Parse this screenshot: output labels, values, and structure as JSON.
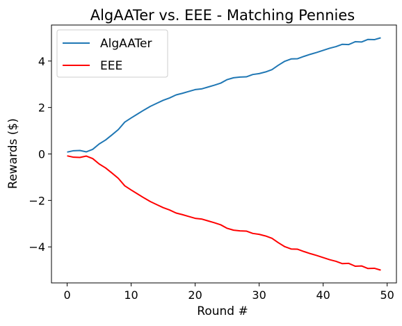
{
  "chart_data": {
    "type": "line",
    "title": "AlgAATer vs. EEE - Matching Pennies",
    "xlabel": "Round #",
    "ylabel": "Rewards ($)",
    "xlim": [
      -2.45,
      51.45
    ],
    "ylim": [
      -5.55,
      5.55
    ],
    "xticks": [
      0,
      10,
      20,
      30,
      40,
      50
    ],
    "yticks": [
      -4,
      -2,
      0,
      2,
      4
    ],
    "xtick_labels": [
      "0",
      "10",
      "20",
      "30",
      "40",
      "50"
    ],
    "ytick_labels": [
      "−4",
      "−2",
      "0",
      "2",
      "4"
    ],
    "grid": false,
    "legend_position": "top-left",
    "x": [
      0,
      1,
      2,
      3,
      4,
      5,
      6,
      7,
      8,
      9,
      10,
      11,
      12,
      13,
      14,
      15,
      16,
      17,
      18,
      19,
      20,
      21,
      22,
      23,
      24,
      25,
      26,
      27,
      28,
      29,
      30,
      31,
      32,
      33,
      34,
      35,
      36,
      37,
      38,
      39,
      40,
      41,
      42,
      43,
      44,
      45,
      46,
      47,
      48,
      49
    ],
    "series": [
      {
        "name": "AlgAATer",
        "color": "#1f77b4",
        "values": [
          0.08,
          0.14,
          0.15,
          0.09,
          0.2,
          0.43,
          0.6,
          0.82,
          1.05,
          1.37,
          1.55,
          1.72,
          1.89,
          2.05,
          2.18,
          2.31,
          2.41,
          2.54,
          2.61,
          2.69,
          2.77,
          2.8,
          2.88,
          2.96,
          3.05,
          3.2,
          3.28,
          3.31,
          3.32,
          3.42,
          3.46,
          3.53,
          3.63,
          3.82,
          3.99,
          4.09,
          4.1,
          4.2,
          4.29,
          4.37,
          4.46,
          4.55,
          4.62,
          4.72,
          4.71,
          4.83,
          4.82,
          4.93,
          4.92,
          5.0
        ]
      },
      {
        "name": "EEE",
        "color": "#ff0000",
        "values": [
          -0.08,
          -0.14,
          -0.15,
          -0.09,
          -0.2,
          -0.43,
          -0.6,
          -0.82,
          -1.05,
          -1.37,
          -1.55,
          -1.72,
          -1.89,
          -2.05,
          -2.18,
          -2.31,
          -2.41,
          -2.54,
          -2.61,
          -2.69,
          -2.77,
          -2.8,
          -2.88,
          -2.96,
          -3.05,
          -3.2,
          -3.28,
          -3.31,
          -3.32,
          -3.42,
          -3.46,
          -3.53,
          -3.63,
          -3.82,
          -3.99,
          -4.09,
          -4.1,
          -4.2,
          -4.29,
          -4.37,
          -4.46,
          -4.55,
          -4.62,
          -4.72,
          -4.71,
          -4.83,
          -4.82,
          -4.93,
          -4.92,
          -5.0
        ]
      }
    ]
  }
}
